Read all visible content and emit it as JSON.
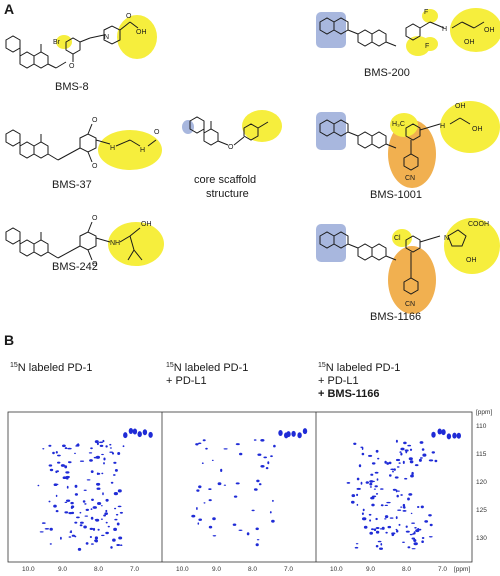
{
  "figure": {
    "panel_a_label": "A",
    "panel_b_label": "B",
    "compounds": [
      {
        "id": "bms8",
        "name": "BMS-8"
      },
      {
        "id": "bms37",
        "name": "BMS-37"
      },
      {
        "id": "bms242",
        "name": "BMS-242"
      },
      {
        "id": "bms200",
        "name": "BMS-200"
      },
      {
        "id": "bms1001",
        "name": "BMS-1001"
      },
      {
        "id": "bms1166",
        "name": "BMS-1166"
      }
    ],
    "core_label_line1": "core scaffold",
    "core_label_line2": "structure",
    "atoms": {
      "br": "Br",
      "o": "O",
      "oh": "OH",
      "n": "N",
      "h": "H",
      "nh": "NH",
      "f": "F",
      "cl": "Cl",
      "cn": "CN",
      "cooh": "COOH",
      "h3c": "H₃C"
    },
    "spectra": [
      {
        "mass": "15",
        "line1": "N labeled PD-1",
        "line2": "",
        "line3": ""
      },
      {
        "mass": "15",
        "line1": "N labeled PD-1",
        "line2": "+ PD-L1",
        "line3": ""
      },
      {
        "mass": "15",
        "line1": "N labeled PD-1",
        "line2": "+ PD-L1",
        "line3": "+ BMS-1166"
      }
    ],
    "axis": {
      "unit": "[ppm]",
      "x_ticks": [
        "10.0",
        "9.0",
        "8.0",
        "7.0"
      ],
      "y_ticks": [
        "110",
        "115",
        "120",
        "125",
        "130"
      ]
    },
    "highlight_colors": {
      "yellow": "#f6ee3d",
      "orange": "#f1b050",
      "blue": "#a8b7de",
      "peaks": "#1f2bd6"
    }
  }
}
